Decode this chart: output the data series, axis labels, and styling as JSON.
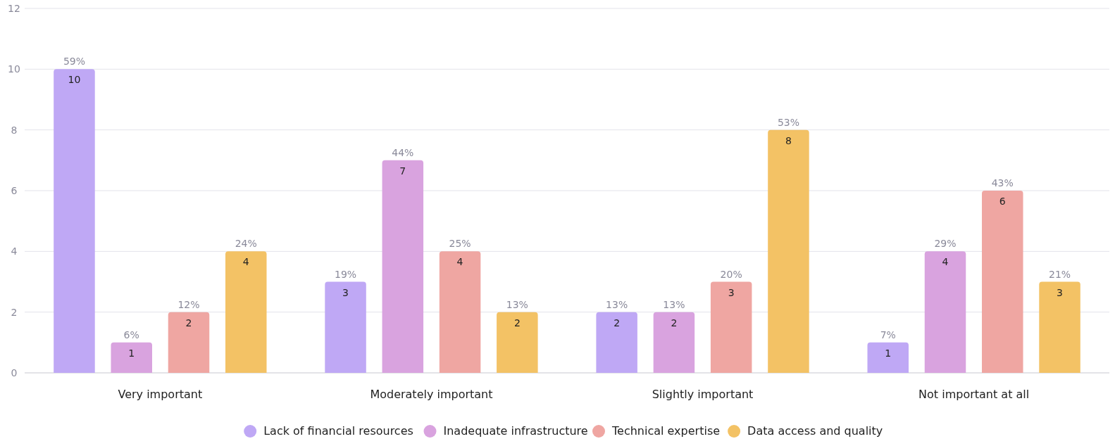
{
  "chart_data": {
    "type": "bar",
    "categories": [
      "Very important",
      "Moderately important",
      "Slightly important",
      "Not important at all"
    ],
    "series": [
      {
        "name": "Lack of financial resources",
        "color": "#bfa8f5",
        "values": [
          10,
          3,
          2,
          1
        ]
      },
      {
        "name": "Inadequate infrastructure",
        "color": "#d9a3df",
        "values": [
          1,
          7,
          2,
          4
        ]
      },
      {
        "name": "Technical expertise",
        "color": "#efa6a2",
        "values": [
          2,
          4,
          3,
          6
        ]
      },
      {
        "name": "Data access and quality",
        "color": "#f3c265",
        "values": [
          4,
          2,
          8,
          3
        ]
      }
    ],
    "annotations": [
      "59%",
      "19%",
      "13%",
      "7%",
      "6%",
      "44%",
      "13%",
      "29%",
      "12%",
      "25%",
      "20%",
      "43%",
      "24%",
      "13%",
      "53%",
      "21%"
    ],
    "ylim": [
      0,
      12
    ],
    "yticks": [
      0,
      2,
      4,
      6,
      8,
      10,
      12
    ],
    "grid": "y",
    "legend": "bottom",
    "data_labels": true
  }
}
